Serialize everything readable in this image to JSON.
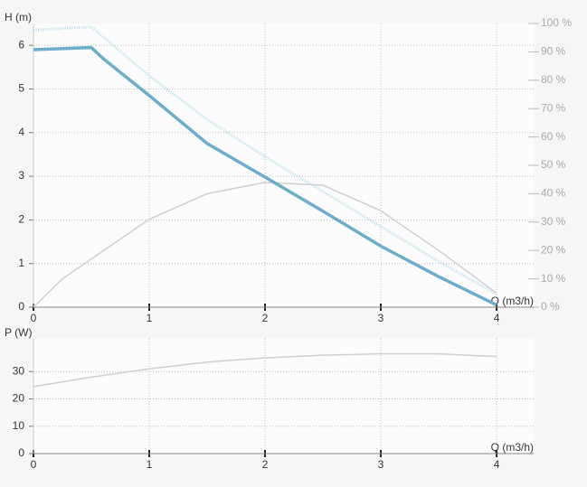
{
  "chart_data": [
    {
      "type": "line",
      "ylabel": "H (m)",
      "xlabel": "Q (m3/h)",
      "xlim": [
        0,
        4.32
      ],
      "ylim": [
        0,
        6.5
      ],
      "xticks": [
        0,
        1,
        2,
        3,
        4
      ],
      "yticks": [
        0,
        1,
        2,
        3,
        4,
        5,
        6
      ],
      "y2lim": [
        0,
        100
      ],
      "y2ticks": [
        {
          "value": 0,
          "label": "0 %"
        },
        {
          "value": 10,
          "label": "10 %"
        },
        {
          "value": 20,
          "label": "20 %"
        },
        {
          "value": 30,
          "label": "30 %"
        },
        {
          "value": 40,
          "label": "40 %"
        },
        {
          "value": 50,
          "label": "50 %"
        },
        {
          "value": 60,
          "label": "60 %"
        },
        {
          "value": 70,
          "label": "70 %"
        },
        {
          "value": 80,
          "label": "80 %"
        },
        {
          "value": 90,
          "label": "90 %"
        },
        {
          "value": 100,
          "label": "100 %"
        }
      ],
      "grid": true,
      "series": [
        {
          "color": "#b9dfe9",
          "linestyle": "dotted",
          "x": [
            0,
            0.5,
            1,
            1.5,
            2,
            2.5,
            3,
            3.5,
            4
          ],
          "values": [
            6.35,
            6.42,
            5.3,
            4.3,
            3.45,
            2.65,
            1.85,
            1.05,
            0.3
          ]
        },
        {
          "color": "#cfcfcf",
          "axis": "y2",
          "x": [
            0,
            0.25,
            0.5,
            1,
            1.5,
            2,
            2.5,
            3,
            3.5,
            4
          ],
          "values": [
            0,
            10,
            17,
            31,
            40,
            44,
            43,
            34,
            20,
            5
          ]
        },
        {
          "color": "#6aaecb",
          "linestyle": "solid-thick",
          "x": [
            0,
            0.5,
            0.6,
            1,
            1.5,
            2,
            2.5,
            3,
            3.5,
            4
          ],
          "values": [
            5.9,
            5.95,
            5.7,
            4.85,
            3.75,
            2.98,
            2.2,
            1.4,
            0.7,
            0.05
          ]
        }
      ]
    },
    {
      "type": "line",
      "ylabel": "P (W)",
      "xlabel": "Q (m3/h)",
      "xlim": [
        0,
        4.32
      ],
      "ylim": [
        0,
        42
      ],
      "xticks": [
        0,
        1,
        2,
        3,
        4
      ],
      "yticks": [
        0,
        10,
        20,
        30
      ],
      "grid": true,
      "series": [
        {
          "color": "#cfcfcf",
          "x": [
            0,
            0.5,
            1,
            1.5,
            2,
            2.5,
            3,
            3.5,
            4
          ],
          "values": [
            24.5,
            28,
            31,
            33.5,
            35,
            36,
            36.5,
            36.5,
            35.5
          ]
        }
      ]
    }
  ]
}
